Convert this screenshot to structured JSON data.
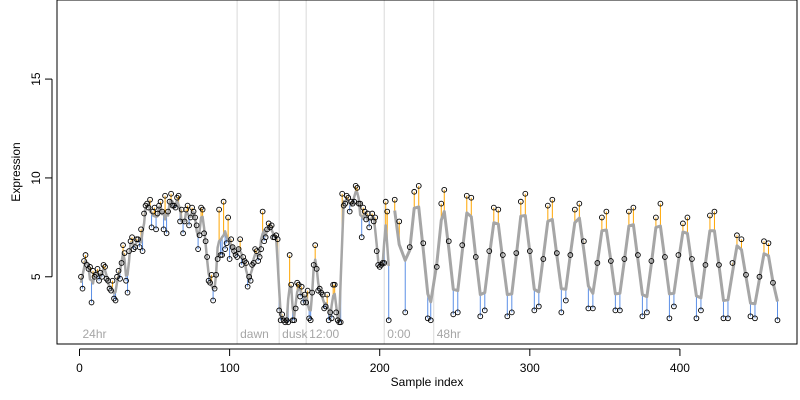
{
  "chart_data": {
    "type": "scatter",
    "title": "",
    "xlabel": "Sample index",
    "ylabel": "Expression",
    "xlim": [
      -15,
      478
    ],
    "ylim": [
      1.6,
      19
    ],
    "xticks": [
      0,
      100,
      200,
      300,
      400
    ],
    "yticks": [
      5,
      10,
      15
    ],
    "grid": false,
    "legend": "none",
    "segments": [
      {
        "label": "24hr",
        "start_x": 0
      },
      {
        "label": "dawn",
        "start_x": 105
      },
      {
        "label": "dusk",
        "start_x": 133
      },
      {
        "label": "12:00",
        "start_x": 151
      },
      {
        "label": "0:00",
        "start_x": 203
      },
      {
        "label": "48hr",
        "start_x": 236
      }
    ],
    "colors": {
      "points": "#000000",
      "fit_line": "#a6a6a6",
      "residual_positive": "#ffa500",
      "residual_negative": "#5b8fe6",
      "divider": "#d9d9d9",
      "segment_label": "#a6a6a6"
    },
    "series": [
      {
        "values": [
          [
            1,
            5.0
          ],
          [
            2,
            4.4
          ],
          [
            3,
            5.8
          ],
          [
            4,
            6.1
          ],
          [
            5,
            5.6
          ],
          [
            6,
            5.4
          ],
          [
            7,
            5.5
          ],
          [
            8,
            3.7
          ],
          [
            9,
            5.3
          ],
          [
            10,
            5.0
          ],
          [
            11,
            5.1
          ],
          [
            12,
            5.4
          ],
          [
            13,
            4.8
          ],
          [
            14,
            5.2
          ],
          [
            15,
            5.0
          ],
          [
            16,
            5.6
          ],
          [
            17,
            5.5
          ],
          [
            18,
            4.9
          ],
          [
            19,
            4.8
          ],
          [
            20,
            4.4
          ],
          [
            21,
            4.3
          ],
          [
            22,
            4.8
          ],
          [
            23,
            3.9
          ],
          [
            24,
            3.8
          ],
          [
            25,
            5.0
          ],
          [
            26,
            5.3
          ],
          [
            27,
            4.9
          ],
          [
            28,
            5.7
          ],
          [
            29,
            6.6
          ],
          [
            30,
            6.2
          ],
          [
            31,
            4.8
          ],
          [
            32,
            4.2
          ],
          [
            33,
            6.3
          ],
          [
            34,
            6.8
          ],
          [
            35,
            7.0
          ],
          [
            36,
            6.4
          ],
          [
            37,
            6.5
          ],
          [
            38,
            6.9
          ],
          [
            39,
            6.9
          ],
          [
            40,
            6.5
          ],
          [
            41,
            7.4
          ],
          [
            42,
            6.3
          ],
          [
            43,
            8.2
          ],
          [
            44,
            8.6
          ],
          [
            45,
            8.7
          ],
          [
            46,
            8.5
          ],
          [
            47,
            8.9
          ],
          [
            48,
            7.5
          ],
          [
            49,
            8.3
          ],
          [
            50,
            8.5
          ],
          [
            51,
            7.4
          ],
          [
            52,
            8.2
          ],
          [
            53,
            8.6
          ],
          [
            54,
            8.8
          ],
          [
            55,
            8.3
          ],
          [
            56,
            7.4
          ],
          [
            57,
            9.1
          ],
          [
            58,
            7.2
          ],
          [
            59,
            8.3
          ],
          [
            60,
            8.8
          ],
          [
            61,
            9.2
          ],
          [
            62,
            8.6
          ],
          [
            63,
            8.6
          ],
          [
            64,
            8.5
          ],
          [
            65,
            9.0
          ],
          [
            66,
            9.1
          ],
          [
            67,
            7.8
          ],
          [
            68,
            8.4
          ],
          [
            69,
            7.2
          ],
          [
            70,
            7.8
          ],
          [
            71,
            8.4
          ],
          [
            72,
            8.6
          ],
          [
            73,
            7.6
          ],
          [
            74,
            8.0
          ],
          [
            75,
            8.5
          ],
          [
            76,
            8.3
          ],
          [
            77,
            8.0
          ],
          [
            78,
            7.6
          ],
          [
            79,
            6.4
          ],
          [
            80,
            7.1
          ],
          [
            81,
            8.5
          ],
          [
            82,
            8.4
          ],
          [
            83,
            7.2
          ],
          [
            84,
            6.8
          ],
          [
            85,
            6.0
          ],
          [
            86,
            4.8
          ],
          [
            87,
            4.7
          ],
          [
            88,
            5.1
          ],
          [
            89,
            3.8
          ],
          [
            90,
            4.4
          ],
          [
            91,
            5.1
          ],
          [
            92,
            5.9
          ],
          [
            93,
            8.4
          ],
          [
            94,
            6.1
          ],
          [
            95,
            6.1
          ],
          [
            96,
            8.8
          ],
          [
            97,
            6.4
          ],
          [
            98,
            6.7
          ],
          [
            99,
            8.0
          ],
          [
            100,
            5.9
          ],
          [
            101,
            6.9
          ],
          [
            102,
            6.5
          ],
          [
            103,
            6.3
          ],
          [
            104,
            6.1
          ],
          [
            105,
            6.0
          ],
          [
            106,
            6.4
          ],
          [
            107,
            6.9
          ],
          [
            108,
            5.6
          ],
          [
            109,
            6.0
          ],
          [
            110,
            5.8
          ],
          [
            111,
            5.7
          ],
          [
            112,
            4.5
          ],
          [
            113,
            5.0
          ],
          [
            114,
            4.8
          ],
          [
            115,
            5.6
          ],
          [
            116,
            5.7
          ],
          [
            117,
            6.4
          ],
          [
            118,
            6.3
          ],
          [
            119,
            5.8
          ],
          [
            120,
            6.0
          ],
          [
            121,
            6.4
          ],
          [
            122,
            8.3
          ],
          [
            123,
            6.8
          ],
          [
            124,
            7.0
          ],
          [
            125,
            7.4
          ],
          [
            126,
            7.7
          ],
          [
            127,
            7.5
          ],
          [
            128,
            7.6
          ],
          [
            129,
            7.0
          ],
          [
            130,
            7.0
          ],
          [
            131,
            7.1
          ],
          [
            132,
            6.9
          ],
          [
            133,
            3.3
          ],
          [
            134,
            2.8
          ],
          [
            135,
            3.1
          ],
          [
            136,
            2.8
          ],
          [
            137,
            2.7
          ],
          [
            138,
            2.8
          ],
          [
            139,
            2.7
          ],
          [
            140,
            6.1
          ],
          [
            141,
            4.6
          ],
          [
            142,
            2.8
          ],
          [
            143,
            2.8
          ],
          [
            144,
            3.4
          ],
          [
            145,
            4.7
          ],
          [
            146,
            4.6
          ],
          [
            147,
            4.0
          ],
          [
            148,
            4.5
          ],
          [
            149,
            3.7
          ],
          [
            150,
            4.1
          ],
          [
            151,
            3.7
          ],
          [
            152,
            4.3
          ],
          [
            153,
            2.9
          ],
          [
            154,
            2.8
          ],
          [
            155,
            4.2
          ],
          [
            156,
            5.6
          ],
          [
            157,
            6.6
          ],
          [
            158,
            5.4
          ],
          [
            159,
            4.3
          ],
          [
            160,
            4.4
          ],
          [
            161,
            4.2
          ],
          [
            162,
            4.1
          ],
          [
            163,
            3.4
          ],
          [
            164,
            3.5
          ],
          [
            165,
            4.1
          ],
          [
            166,
            2.8
          ],
          [
            167,
            3.2
          ],
          [
            168,
            2.9
          ],
          [
            169,
            4.6
          ],
          [
            170,
            4.6
          ],
          [
            171,
            3.2
          ],
          [
            172,
            2.8
          ],
          [
            173,
            2.7
          ],
          [
            174,
            2.7
          ],
          [
            175,
            9.2
          ],
          [
            176,
            8.6
          ],
          [
            177,
            8.7
          ],
          [
            178,
            9.1
          ],
          [
            179,
            9.0
          ],
          [
            180,
            8.3
          ],
          [
            181,
            8.8
          ],
          [
            182,
            8.7
          ],
          [
            183,
            8.8
          ],
          [
            184,
            9.6
          ],
          [
            185,
            9.5
          ],
          [
            186,
            8.7
          ],
          [
            187,
            8.7
          ],
          [
            188,
            7.0
          ],
          [
            189,
            8.5
          ],
          [
            190,
            8.3
          ],
          [
            191,
            7.9
          ],
          [
            192,
            8.2
          ],
          [
            193,
            7.5
          ],
          [
            194,
            8.0
          ],
          [
            195,
            8.2
          ],
          [
            196,
            7.8
          ],
          [
            197,
            8.0
          ],
          [
            198,
            6.3
          ],
          [
            199,
            5.6
          ],
          [
            200,
            5.5
          ],
          [
            201,
            5.6
          ],
          [
            202,
            5.7
          ],
          [
            203,
            5.7
          ],
          [
            204,
            8.8
          ],
          [
            205,
            8.3
          ],
          [
            206,
            2.8
          ]
        ]
      },
      {
        "values": [
          [
            210,
            8.9
          ],
          [
            213,
            7.8
          ],
          [
            217,
            3.2
          ],
          [
            220,
            6.5
          ],
          [
            223,
            9.3
          ],
          [
            226,
            9.6
          ],
          [
            229,
            6.7
          ],
          [
            232,
            2.9
          ],
          [
            234,
            2.8
          ],
          [
            238,
            5.5
          ],
          [
            241,
            8.7
          ],
          [
            243,
            9.4
          ],
          [
            246,
            6.8
          ],
          [
            249,
            3.1
          ],
          [
            252,
            3.2
          ],
          [
            255,
            6.6
          ],
          [
            258,
            9.1
          ],
          [
            261,
            9.0
          ],
          [
            264,
            6.0
          ],
          [
            267,
            3.0
          ],
          [
            270,
            3.3
          ],
          [
            273,
            6.3
          ],
          [
            276,
            8.5
          ],
          [
            279,
            8.4
          ],
          [
            282,
            6.1
          ],
          [
            285,
            3.0
          ],
          [
            288,
            3.2
          ],
          [
            291,
            6.2
          ],
          [
            294,
            8.8
          ],
          [
            297,
            9.2
          ],
          [
            300,
            6.3
          ],
          [
            303,
            3.3
          ],
          [
            306,
            3.5
          ],
          [
            309,
            5.9
          ],
          [
            312,
            8.6
          ],
          [
            315,
            8.9
          ],
          [
            318,
            6.2
          ],
          [
            321,
            3.2
          ],
          [
            324,
            3.8
          ],
          [
            327,
            6.1
          ],
          [
            330,
            8.4
          ],
          [
            333,
            8.7
          ],
          [
            336,
            6.8
          ],
          [
            339,
            3.4
          ],
          [
            342,
            3.4
          ],
          [
            345,
            5.7
          ],
          [
            348,
            8.0
          ],
          [
            351,
            8.3
          ],
          [
            354,
            5.8
          ],
          [
            357,
            3.3
          ],
          [
            360,
            3.3
          ],
          [
            363,
            5.9
          ],
          [
            366,
            8.3
          ],
          [
            369,
            8.5
          ],
          [
            372,
            6.1
          ],
          [
            375,
            3.0
          ],
          [
            378,
            3.2
          ],
          [
            381,
            5.8
          ],
          [
            384,
            8.0
          ],
          [
            387,
            8.7
          ],
          [
            390,
            6.0
          ],
          [
            393,
            2.9
          ],
          [
            396,
            3.5
          ],
          [
            399,
            6.1
          ],
          [
            402,
            7.7
          ],
          [
            405,
            8.0
          ],
          [
            408,
            5.9
          ],
          [
            411,
            2.9
          ],
          [
            414,
            3.3
          ],
          [
            417,
            5.6
          ],
          [
            420,
            8.1
          ],
          [
            423,
            8.3
          ],
          [
            426,
            5.6
          ],
          [
            429,
            2.9
          ],
          [
            432,
            2.9
          ],
          [
            435,
            5.7
          ],
          [
            438,
            7.1
          ],
          [
            441,
            6.9
          ],
          [
            444,
            5.1
          ],
          [
            447,
            3.0
          ],
          [
            450,
            2.9
          ],
          [
            453,
            5.0
          ],
          [
            456,
            6.8
          ],
          [
            459,
            6.7
          ],
          [
            462,
            4.7
          ],
          [
            465,
            2.8
          ]
        ]
      }
    ]
  }
}
